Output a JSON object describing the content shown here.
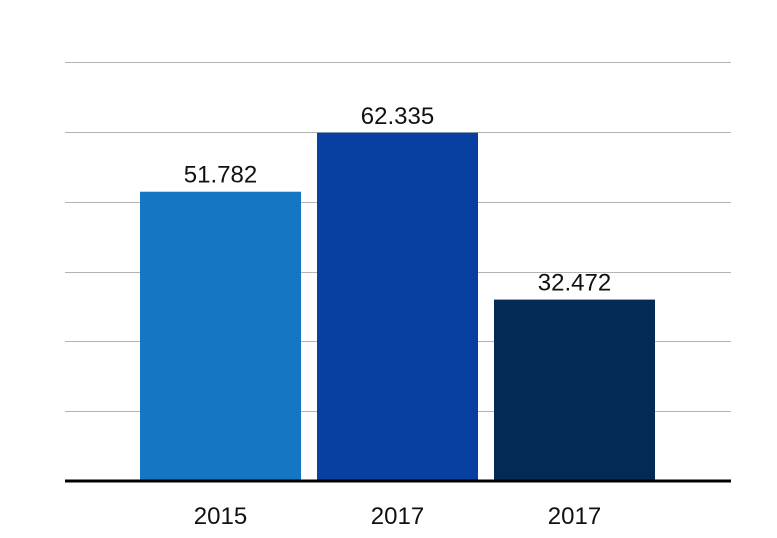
{
  "chart_data": {
    "type": "bar",
    "categories": [
      "2015",
      "2017",
      "2017"
    ],
    "values": [
      51.782,
      62.335,
      32.472
    ],
    "value_labels": [
      "51.782",
      "62.335",
      "32.472"
    ],
    "colors": [
      "#1577c3",
      "#0740a1",
      "#032a54"
    ],
    "title": "",
    "xlabel": "",
    "ylabel": "",
    "ylim": [
      0,
      75
    ],
    "y_grid_step": 12.5,
    "grid": true,
    "legend": "none",
    "baseline_color": "#000000",
    "grid_color": "#b3b3b3"
  }
}
